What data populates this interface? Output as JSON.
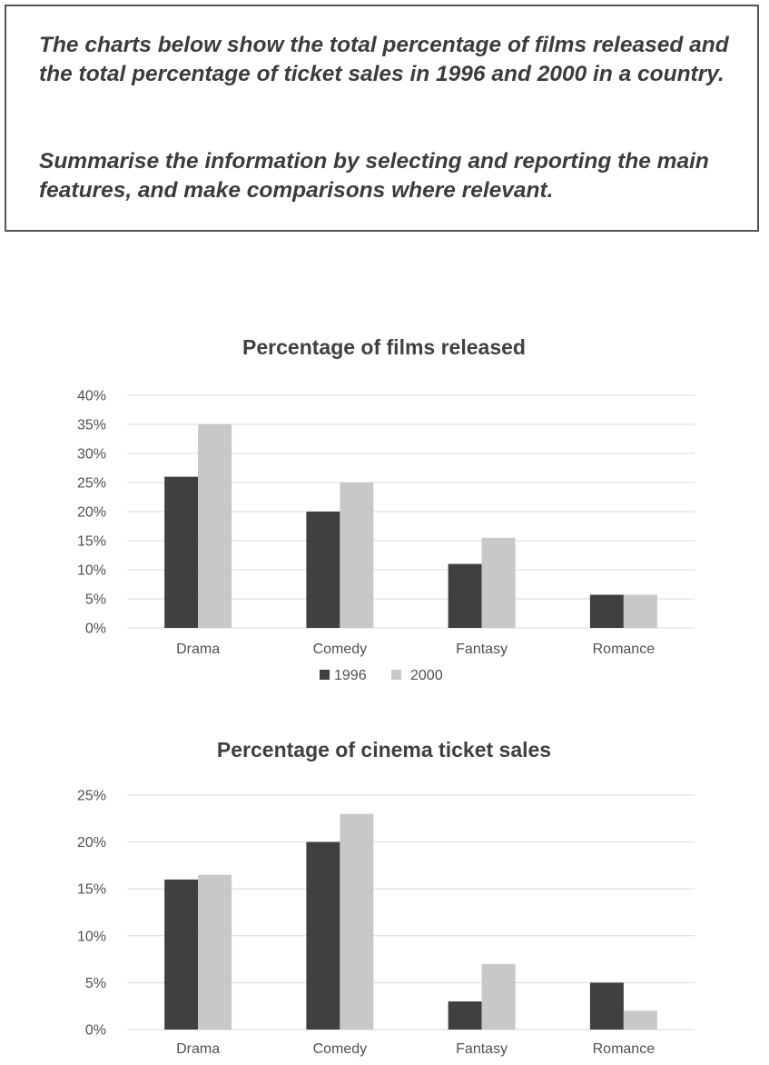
{
  "prompt": {
    "paragraph1": "The charts below show the total percentage of films released and the total percentage of ticket sales in 1996 and 2000 in a country.",
    "paragraph2": "Summarise the information by selecting and reporting the main features, and make comparisons where relevant."
  },
  "colors": {
    "series_1996": "#404040",
    "series_2000": "#c8c8c8"
  },
  "chart_data": [
    {
      "type": "bar",
      "title": "Percentage of films released",
      "categories": [
        "Drama",
        "Comedy",
        "Fantasy",
        "Romance"
      ],
      "series": [
        {
          "name": "1996",
          "values": [
            26,
            20,
            11,
            5.7
          ]
        },
        {
          "name": "2000",
          "values": [
            35,
            25,
            15.5,
            5.7
          ]
        }
      ],
      "yticks": [
        "0%",
        "5%",
        "10%",
        "15%",
        "20%",
        "25%",
        "30%",
        "35%",
        "40%"
      ],
      "ylim": [
        0,
        40
      ],
      "grid": true,
      "legend": "bottom-center"
    },
    {
      "type": "bar",
      "title": "Percentage of cinema ticket sales",
      "categories": [
        "Drama",
        "Comedy",
        "Fantasy",
        "Romance"
      ],
      "series": [
        {
          "name": "1996",
          "values": [
            16,
            20,
            3,
            5
          ]
        },
        {
          "name": "2000",
          "values": [
            16.5,
            23,
            7,
            2
          ]
        }
      ],
      "yticks": [
        "0%",
        "5%",
        "10%",
        "15%",
        "20%",
        "25%"
      ],
      "ylim": [
        0,
        25
      ],
      "grid": true,
      "legend": "none"
    }
  ]
}
